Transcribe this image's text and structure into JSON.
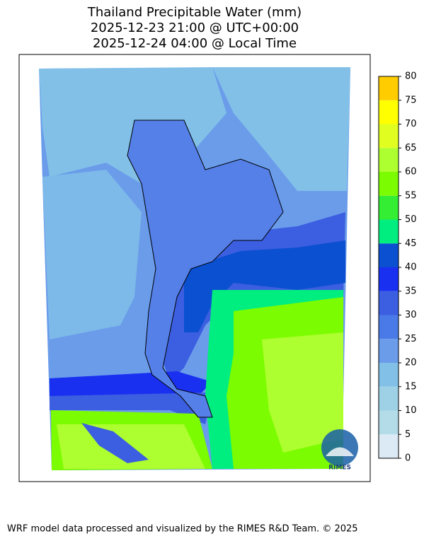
{
  "title": [
    "Thailand Precipitable Water (mm)",
    "2025-12-23 21:00 @ UTC+00:00",
    "2025-12-24 04:00 @ Local Time"
  ],
  "colorbar": {
    "ticks": [
      0,
      5,
      10,
      15,
      20,
      25,
      30,
      35,
      40,
      45,
      50,
      55,
      60,
      65,
      70,
      75,
      80
    ],
    "colors": [
      "#dceaf5",
      "#b4dce8",
      "#9ed0e6",
      "#82c0e8",
      "#6a9cea",
      "#4a7ae8",
      "#3c5ee0",
      "#1a30f0",
      "#0a50d0",
      "#00ee80",
      "#33ee33",
      "#7cfc00",
      "#adff2f",
      "#e0ff20",
      "#ffff00",
      "#ffcc00"
    ]
  },
  "logo": "RIMES",
  "footer": "WRF model data processed and visualized by the RIMES R&D Team. © 2025"
}
